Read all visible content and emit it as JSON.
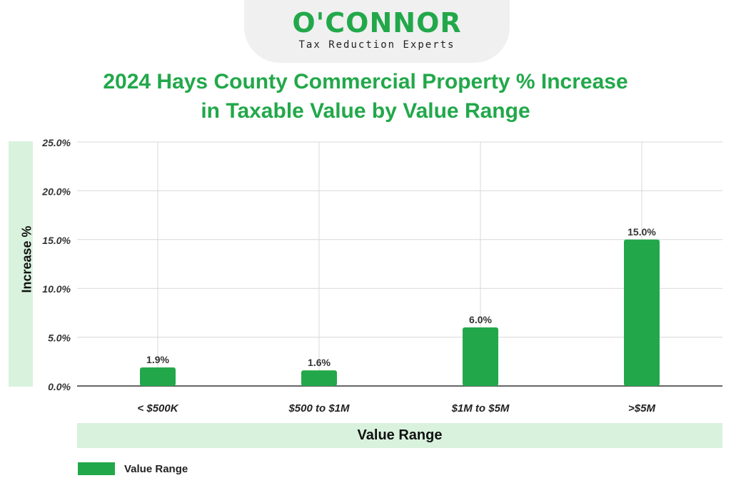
{
  "header": {
    "brand": "O'CONNOR",
    "tagline": "Tax Reduction Experts"
  },
  "colors": {
    "bar": "#22a84a",
    "title": "#22a84a",
    "axis_band": "#d9f2dd",
    "grid": "#d8d8d8"
  },
  "chart_data": {
    "type": "bar",
    "title": "2024 Hays County Commercial Property % Increase in Taxable Value by Value Range",
    "title_lines": [
      "2024 Hays County Commercial Property % Increase",
      "in Taxable Value by Value Range"
    ],
    "xlabel": "Value Range",
    "ylabel": "Increase %",
    "categories": [
      "< $500K",
      "$500 to $1M",
      "$1M to $5M",
      ">$5M"
    ],
    "values": [
      1.9,
      1.6,
      6.0,
      15.0
    ],
    "data_labels": [
      "1.9%",
      "1.6%",
      "6.0%",
      "15.0%"
    ],
    "ylim": [
      0,
      25
    ],
    "yticks": [
      0,
      5,
      10,
      15,
      20,
      25
    ],
    "ytick_labels": [
      "0.0%",
      "5.0%",
      "10.0%",
      "15.0%",
      "20.0%",
      "25.0%"
    ],
    "grid": true,
    "legend": {
      "position": "bottom-left",
      "entries": [
        "Value Range"
      ]
    }
  }
}
